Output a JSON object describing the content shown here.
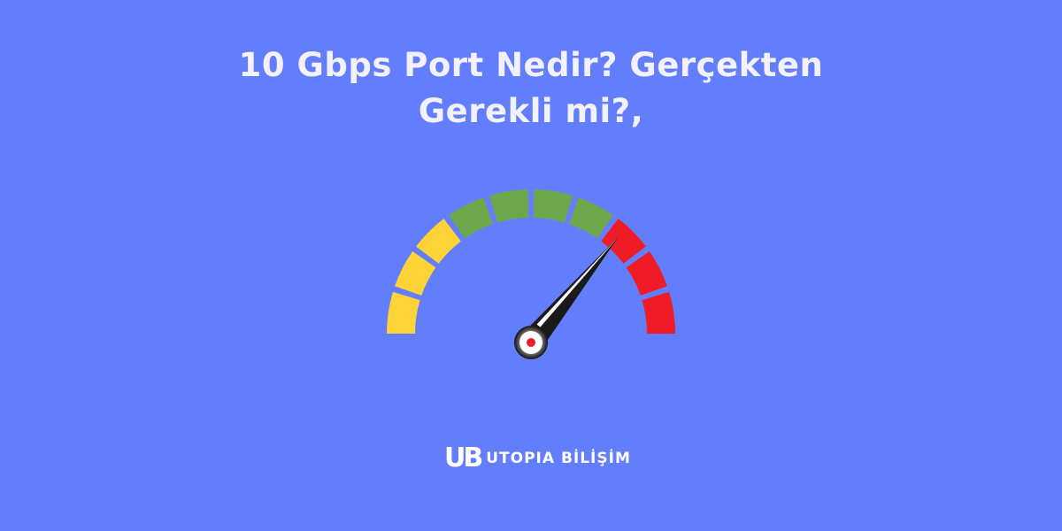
{
  "title": {
    "line1": "10 Gbps Port Nedir? Gerçekten",
    "line2": "Gerekli mi?,"
  },
  "gauge": {
    "segments": [
      "#fdd335",
      "#fdd335",
      "#fdd335",
      "#6ea64c",
      "#6ea64c",
      "#6ea64c",
      "#6ea64c",
      "#ef1c27",
      "#ef1c27",
      "#ef1c27"
    ],
    "needle_fraction": 0.72
  },
  "logo": {
    "mark": "UB",
    "text": "UTOPIA BİLİŞİM"
  },
  "colors": {
    "background": "#627efd",
    "text": "#f3f1fb"
  }
}
